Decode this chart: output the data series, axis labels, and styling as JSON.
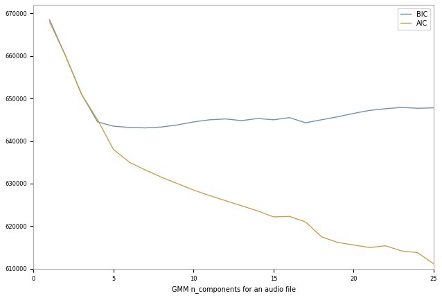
{
  "title": "",
  "xlabel": "GMM n_components for an audio file",
  "ylabel": "",
  "xlim": [
    0,
    25
  ],
  "ylim": [
    610000,
    672000
  ],
  "yticks": [
    610000,
    620000,
    630000,
    640000,
    650000,
    660000,
    670000
  ],
  "xticks": [
    0,
    5,
    10,
    15,
    20,
    25
  ],
  "bic_color": "#7090b0",
  "aic_color": "#c8a050",
  "legend_labels": [
    "BIC",
    "AIC"
  ],
  "background_color": "#ffffff",
  "bic_x": [
    1,
    2,
    3,
    4,
    5,
    6,
    7,
    8,
    9,
    10,
    11,
    12,
    13,
    14,
    15,
    16,
    17,
    18,
    19,
    20,
    21,
    22,
    23,
    24,
    25
  ],
  "bic_y": [
    668500,
    660000,
    651000,
    644500,
    643500,
    643200,
    643100,
    643300,
    643800,
    644500,
    645000,
    645200,
    644800,
    645300,
    645000,
    645500,
    644300,
    645000,
    645700,
    646500,
    647200,
    647600,
    647900,
    647700,
    647800
  ],
  "aic_x": [
    1,
    2,
    3,
    4,
    5,
    6,
    7,
    8,
    9,
    10,
    11,
    12,
    13,
    14,
    15,
    16,
    17,
    18,
    19,
    20,
    21,
    22,
    23,
    24,
    25
  ],
  "aic_y": [
    668000,
    660000,
    651000,
    645000,
    638000,
    635000,
    633200,
    631500,
    630000,
    628500,
    627200,
    626000,
    624800,
    623600,
    622200,
    622300,
    621000,
    617500,
    616200,
    615600,
    615000,
    615400,
    614200,
    613800,
    611200
  ]
}
